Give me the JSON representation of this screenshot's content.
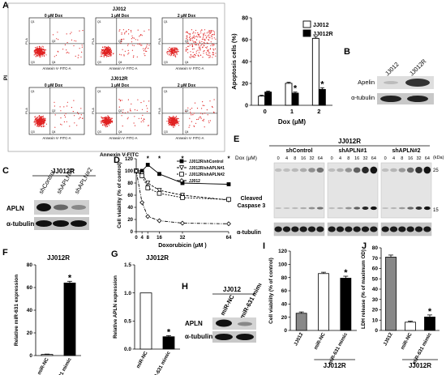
{
  "panel_letters": [
    "A",
    "B",
    "C",
    "D",
    "E",
    "F",
    "G",
    "H",
    "I",
    "J"
  ],
  "panel_a": {
    "rows": [
      {
        "title": "JJ012",
        "plots": [
          {
            "dose": "0 μM Dox",
            "pct": "8.4%"
          },
          {
            "dose": "1 μM Dox",
            "pct": "20.1%"
          },
          {
            "dose": "2 μM Dox",
            "pct": "61.2%"
          }
        ]
      },
      {
        "title": "JJ012R",
        "plots": [
          {
            "dose": "0 μM Dox",
            "pct": "12.1%"
          },
          {
            "dose": "1 μM Dox",
            "pct": "11.1%"
          },
          {
            "dose": "2 μM Dox",
            "pct": "14.5%"
          }
        ]
      }
    ],
    "plot_xlabel": "Annexin V- FITC-A",
    "plot_ylabel": "PI-A",
    "quadrants": [
      "Q1",
      "Q2",
      "Q3",
      "Q4"
    ],
    "outer_xlabel": "Annexin V-FITC",
    "outer_ylabel": "PI"
  },
  "blot_b": {
    "lanes": [
      "JJ012",
      "JJ012R"
    ],
    "rows": [
      "Apelin",
      "α-tubulin"
    ]
  },
  "blot_c": {
    "title": "JJ012R",
    "lanes": [
      "shControl",
      "shAPLN#1",
      "shAPLN#2"
    ],
    "rows": [
      "APLN",
      "α-tubulin"
    ]
  },
  "blot_e": {
    "title": "JJ012R",
    "groups": [
      "shControl",
      "shAPLN#1",
      "shAPLN#2"
    ],
    "dose_label": "Dox (μM)",
    "doses": [
      "0",
      "4",
      "8",
      "16",
      "32",
      "64"
    ],
    "kda_label": "(kDa)",
    "mw": [
      "25",
      "15"
    ],
    "rows": [
      "Cleaved Caspase 3",
      "α-tubulin"
    ]
  },
  "blot_h": {
    "title": "JJ012",
    "lanes": [
      "miR-NC",
      "miR-631 mimic"
    ],
    "rows": [
      "APLN",
      "α-tubulin"
    ]
  },
  "chart_data": [
    {
      "panel": "A",
      "type": "bar",
      "categories": [
        "0",
        "1",
        "2"
      ],
      "series": [
        {
          "name": "JJ012",
          "values": [
            8.4,
            20.1,
            61.2
          ],
          "errors": [
            0.8,
            1.0,
            1.5
          ],
          "color": "#ffffff"
        },
        {
          "name": "JJ012R",
          "values": [
            12.1,
            11.1,
            14.5
          ],
          "errors": [
            0.9,
            1.0,
            1.5
          ],
          "color": "#000000"
        }
      ],
      "xlabel": "Dox (μM)",
      "ylabel": "Apoptosis cells (%)",
      "ylim": [
        0,
        80
      ],
      "yticks": [
        0,
        20,
        40,
        60,
        80
      ],
      "legend": "top-right",
      "annotations": [
        "*",
        "*"
      ]
    },
    {
      "panel": "D",
      "type": "line",
      "x": [
        0,
        4,
        8,
        16,
        32,
        64
      ],
      "xtick_labels": [
        "0",
        "4",
        "8",
        "16",
        "32",
        "64"
      ],
      "series": [
        {
          "name": "JJ012R/shControl",
          "values": [
            100,
            100,
            110,
            95,
            80,
            78
          ],
          "marker": "square"
        },
        {
          "name": "JJ012R/shAPLN#1",
          "values": [
            100,
            95,
            80,
            68,
            60,
            52
          ],
          "marker": "tri-down"
        },
        {
          "name": "JJ012R/shAPLN#2",
          "values": [
            100,
            92,
            72,
            63,
            56,
            53
          ],
          "marker": "open-square"
        },
        {
          "name": "JJ012",
          "values": [
            100,
            48,
            25,
            18,
            14,
            13
          ],
          "marker": "diamond"
        }
      ],
      "xlabel": "Doxorubicin (μM )",
      "ylabel": "Cell viability (% of control)",
      "ylim": [
        0,
        120
      ],
      "yticks": [
        0,
        20,
        40,
        60,
        80,
        100,
        120
      ],
      "legend": "top-right",
      "annotations": [
        "*",
        "*",
        "*",
        "*"
      ]
    },
    {
      "panel": "F",
      "type": "bar",
      "title": "JJ012R",
      "categories": [
        "miR-NC",
        "miR-631 mimic"
      ],
      "values": [
        1,
        64
      ],
      "errors": [
        0.3,
        1.5
      ],
      "colors": [
        "#ffffff",
        "#000000"
      ],
      "ylabel": "Relative miR-631 expression",
      "ylim": [
        0,
        80
      ],
      "yticks": [
        0,
        20,
        40,
        60,
        80
      ],
      "annotations": [
        "*"
      ]
    },
    {
      "panel": "G",
      "type": "bar",
      "title": "JJ012R",
      "categories": [
        "miR-NC",
        "miR-631 mimic"
      ],
      "values": [
        1.0,
        0.22
      ],
      "errors": [
        0,
        0.02
      ],
      "colors": [
        "#ffffff",
        "#000000"
      ],
      "ylabel": "Relative APLN expression",
      "ylim": [
        0,
        1.5
      ],
      "yticks": [
        0.0,
        0.5,
        1.0,
        1.5
      ],
      "ytick_labels": [
        "0.0",
        "0.5",
        "1.0",
        "1.5"
      ],
      "annotations": [
        "*"
      ]
    },
    {
      "panel": "I",
      "type": "bar",
      "categories": [
        "JJ012",
        "miR-NC",
        "miR-631 mimic"
      ],
      "values": [
        26,
        86,
        79
      ],
      "errors": [
        2,
        2,
        3
      ],
      "colors": [
        "#888888",
        "#ffffff",
        "#000000"
      ],
      "ylabel": "Cell viability (% of control)",
      "ylim": [
        0,
        120
      ],
      "yticks": [
        0,
        20,
        40,
        60,
        80,
        100,
        120
      ],
      "group_label": "JJ012R",
      "annotations": [
        "*"
      ]
    },
    {
      "panel": "J",
      "type": "bar",
      "categories": [
        "JJ012",
        "miR-NC",
        "miR-631 mimic"
      ],
      "values": [
        71,
        8,
        13
      ],
      "errors": [
        2,
        1,
        2
      ],
      "colors": [
        "#888888",
        "#ffffff",
        "#000000"
      ],
      "ylabel": "LDH release (% of maximum OD)",
      "ylim": [
        0,
        80
      ],
      "yticks": [
        0,
        10,
        20,
        30,
        40,
        50,
        60,
        70,
        80
      ],
      "group_label": "JJ012R",
      "annotations": [
        "*"
      ]
    }
  ]
}
